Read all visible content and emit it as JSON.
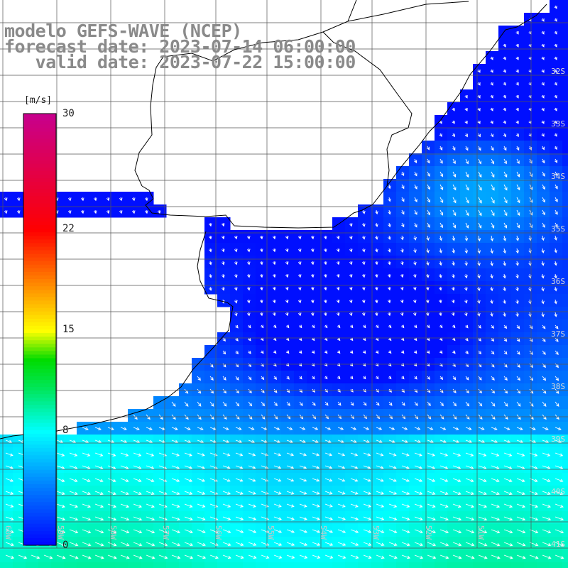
{
  "title": {
    "line1": "modelo GEFS-WAVE (NCEP)",
    "line2": "forecast date: 2023-07-14 06:00:00",
    "line3": "   valid date: 2023-07-22 15:00:00"
  },
  "colorbar": {
    "unit": "[m/s]",
    "ticks": [
      {
        "label": "30",
        "value": 30
      },
      {
        "label": "22",
        "value": 22
      },
      {
        "label": "15",
        "value": 15
      },
      {
        "label": "8",
        "value": 8
      },
      {
        "label": "0",
        "value": 0
      }
    ],
    "min": 0,
    "max": 30
  },
  "latitude_labels": [
    "32S",
    "33S",
    "34S",
    "35S",
    "36S",
    "37S",
    "38S",
    "39S",
    "40S",
    "41S"
  ],
  "longitude_labels": [
    "60W",
    "59W",
    "58W",
    "57W",
    "56W",
    "55W",
    "54W",
    "53W",
    "52W",
    "51W"
  ],
  "colors": {
    "land": "#ffffff",
    "grid": "#555555",
    "coast": "#000000",
    "title": "#8a8a8a"
  }
}
